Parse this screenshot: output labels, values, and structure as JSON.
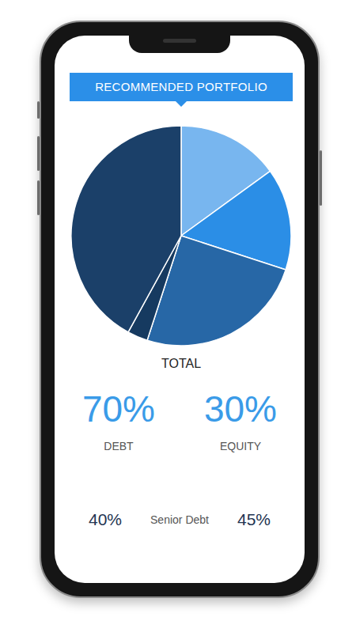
{
  "header": {
    "title": "RECOMMENDED PORTFOLIO"
  },
  "chart_data": {
    "type": "pie",
    "title": "TOTAL",
    "values": [
      15,
      15,
      25,
      3,
      42
    ],
    "colors": [
      "#78b6ef",
      "#2b8ee6",
      "#2767a6",
      "#163a60",
      "#1b4069"
    ],
    "data_labels": false
  },
  "summary": [
    {
      "value": "70%",
      "label": "DEBT"
    },
    {
      "value": "30%",
      "label": "EQUITY"
    }
  ],
  "breakdown": {
    "left": "40%",
    "label": "Senior Debt",
    "right": "45%"
  }
}
